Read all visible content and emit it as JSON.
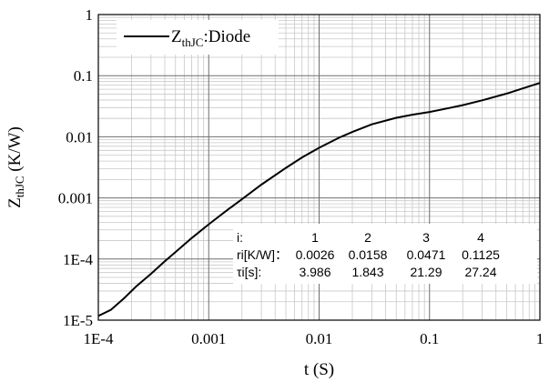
{
  "chart_data": {
    "type": "line",
    "xscale": "log",
    "yscale": "log",
    "xlim": [
      0.0001,
      1
    ],
    "ylim": [
      1e-05,
      1
    ],
    "xlabel": "t (S)",
    "ylabel_main": "Z",
    "ylabel_sub": "thJC",
    "ylabel_unit": " (K/W)",
    "grid": true,
    "x_ticks": [
      {
        "v": 0.0001,
        "label": "1E-4"
      },
      {
        "v": 0.001,
        "label": "0.001"
      },
      {
        "v": 0.01,
        "label": "0.01"
      },
      {
        "v": 0.1,
        "label": "0.1"
      },
      {
        "v": 1,
        "label": "1"
      }
    ],
    "y_ticks": [
      {
        "v": 1e-05,
        "label": "1E-5"
      },
      {
        "v": 0.0001,
        "label": "1E-4"
      },
      {
        "v": 0.001,
        "label": "0.001"
      },
      {
        "v": 0.01,
        "label": "0.01"
      },
      {
        "v": 0.1,
        "label": "0.1"
      },
      {
        "v": 1,
        "label": "1"
      }
    ],
    "legend": {
      "placement": "top-left",
      "main": "Z",
      "sub": "thJC",
      "suffix": ":Diode"
    },
    "series": [
      {
        "name": "ZthJC:Diode",
        "color": "#000000",
        "x": [
          0.0001,
          0.00013,
          0.00017,
          0.00022,
          0.0003,
          0.0004,
          0.0005,
          0.0007,
          0.001,
          0.0015,
          0.002,
          0.003,
          0.005,
          0.007,
          0.01,
          0.015,
          0.02,
          0.03,
          0.05,
          0.07,
          0.1,
          0.15,
          0.2,
          0.3,
          0.5,
          0.7,
          1
        ],
        "y": [
          1.17e-05,
          1.48e-05,
          2.25e-05,
          3.55e-05,
          5.75e-05,
          9.2e-05,
          0.00013,
          0.00022,
          0.00037,
          0.00065,
          0.00095,
          0.00165,
          0.0031,
          0.0046,
          0.0066,
          0.0096,
          0.012,
          0.016,
          0.0205,
          0.023,
          0.0255,
          0.0295,
          0.033,
          0.0395,
          0.051,
          0.062,
          0.076
        ]
      }
    ],
    "table": {
      "header_label": "i:",
      "columns": [
        "1",
        "2",
        "3",
        "4"
      ],
      "rows": [
        {
          "label": "ri[K/W]：",
          "values": [
            "0.0026",
            "0.0158",
            "0.0471",
            "0.1125"
          ]
        },
        {
          "label": "τi[s]:",
          "values": [
            "3.986",
            "1.843",
            "21.29",
            "27.24"
          ]
        }
      ]
    }
  }
}
